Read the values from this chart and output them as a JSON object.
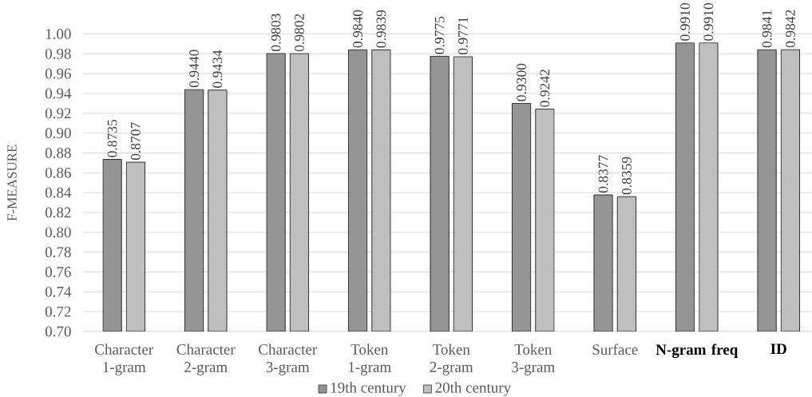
{
  "chart_data": {
    "type": "bar",
    "categories": [
      "Character 1-gram",
      "Character 2-gram",
      "Character 3-gram",
      "Token 1-gram",
      "Token 2-gram",
      "Token 3-gram",
      "Surface",
      "**N-gram freq**",
      "**ID**"
    ],
    "ylabel": "F-MEASURE",
    "series": [
      {
        "name": "19th century",
        "color": "#959595",
        "values": [
          0.8735,
          0.944,
          0.9803,
          0.984,
          0.9775,
          0.93,
          0.8377,
          0.991,
          0.9841
        ],
        "value_labels": [
          "0.8735",
          "0.9440",
          "0.9803",
          "0.9840",
          "0.9775",
          "0.9300",
          "0.8377",
          "0.9910",
          "0.9841"
        ]
      },
      {
        "name": "20th century",
        "color": "#bfbfbf",
        "values": [
          0.8707,
          0.9434,
          0.9802,
          0.9839,
          0.9771,
          0.9242,
          0.8359,
          0.991,
          0.9842
        ],
        "value_labels": [
          "0.8707",
          "0.9434",
          "0.9802",
          "0.9839",
          "0.9771",
          "0.9242",
          "0.8359",
          "0.9910",
          "0.9842"
        ]
      }
    ],
    "ylim": [
      0.7,
      1.0
    ],
    "yticks": [
      {
        "value": 0.7,
        "label": "0.70"
      },
      0.72,
      0.74,
      0.76,
      0.78,
      {
        "value": 0.8,
        "label": "0.80"
      },
      0.82,
      0.84,
      0.86,
      0.88,
      {
        "value": 0.9,
        "label": "0.90"
      },
      0.92,
      0.94,
      0.96,
      0.98,
      {
        "value": 1.0,
        "label": "1.00"
      }
    ],
    "grid": "y",
    "legend": "bottom"
  }
}
